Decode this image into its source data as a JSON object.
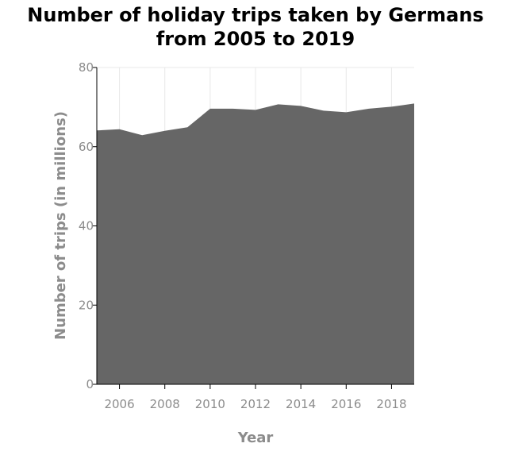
{
  "chart_data": {
    "type": "area",
    "title": [
      "Number of holiday trips taken by Germans",
      "from 2005 to 2019"
    ],
    "xlabel": "Year",
    "ylabel": "Number of trips (in millions)",
    "x": [
      2005,
      2006,
      2007,
      2008,
      2009,
      2010,
      2011,
      2012,
      2013,
      2014,
      2015,
      2016,
      2017,
      2018,
      2019
    ],
    "series": [
      {
        "values": [
          64.1,
          64.4,
          62.9,
          64.0,
          64.9,
          69.6,
          69.6,
          69.3,
          70.7,
          70.3,
          69.1,
          68.7,
          69.6,
          70.1,
          70.9
        ]
      }
    ],
    "xlim": [
      2005,
      2019
    ],
    "ylim": [
      0,
      80
    ],
    "xticks": [
      2006,
      2008,
      2010,
      2012,
      2014,
      2016,
      2018
    ],
    "yticks": [
      0,
      20,
      40,
      60,
      80
    ],
    "grid": true,
    "legend": "none",
    "colors": {
      "area": "#666666",
      "grid": "#e8e8e8",
      "axis": "#000000",
      "tick_text": "#8c8c8c"
    }
  }
}
